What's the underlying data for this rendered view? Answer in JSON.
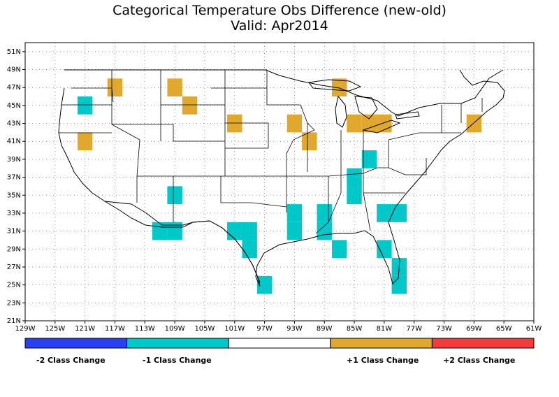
{
  "title_line1": "Categorical Temperature Obs Difference (new-old)",
  "title_line2": "Valid: Apr2014",
  "colors": {
    "minus2": "#2a3ff0",
    "minus1": "#00c8c8",
    "zero": "#ffffff",
    "plus1": "#e0a82e",
    "plus2": "#f23c3c",
    "grid": "#9a9a9a",
    "boundary": "#000000"
  },
  "chart_data": {
    "type": "map",
    "grid_lines": "dotted",
    "x_axis": {
      "range": [
        -129,
        -61
      ],
      "tick_values": [
        -129,
        -125,
        -121,
        -117,
        -113,
        -109,
        -105,
        -101,
        -97,
        -93,
        -89,
        -85,
        -81,
        -77,
        -73,
        -69,
        -65,
        -61
      ],
      "tick_labels": [
        "129W",
        "125W",
        "121W",
        "117W",
        "113W",
        "109W",
        "105W",
        "101W",
        "97W",
        "93W",
        "89W",
        "85W",
        "81W",
        "77W",
        "73W",
        "69W",
        "65W",
        "61W"
      ]
    },
    "y_axis": {
      "range": [
        21,
        52
      ],
      "tick_values": [
        21,
        23,
        25,
        27,
        29,
        31,
        33,
        35,
        37,
        39,
        41,
        43,
        45,
        47,
        49,
        51
      ],
      "tick_labels": [
        "21N",
        "23N",
        "25N",
        "27N",
        "29N",
        "31N",
        "33N",
        "35N",
        "37N",
        "39N",
        "41N",
        "43N",
        "45N",
        "47N",
        "49N",
        "51N"
      ]
    },
    "legend": {
      "position": "bottom",
      "items": [
        {
          "label": "-2 Class Change",
          "value": -2
        },
        {
          "label": "-1 Class Change",
          "value": -1
        },
        {
          "label": "",
          "value": 0
        },
        {
          "label": "+1 Class Change",
          "value": 1
        },
        {
          "label": "+2 Class Change",
          "value": 2
        }
      ]
    },
    "cell_size_deg": 2,
    "cells": [
      {
        "lon": -121,
        "lat": 45,
        "value": -1
      },
      {
        "lon": -121,
        "lat": 41,
        "value": 1
      },
      {
        "lon": -117,
        "lat": 47,
        "value": 1
      },
      {
        "lon": -109,
        "lat": 47,
        "value": 1
      },
      {
        "lon": -107,
        "lat": 45,
        "value": 1
      },
      {
        "lon": -101,
        "lat": 43,
        "value": 1
      },
      {
        "lon": -93,
        "lat": 43,
        "value": 1
      },
      {
        "lon": -91,
        "lat": 41,
        "value": 1
      },
      {
        "lon": -87,
        "lat": 47,
        "value": 1
      },
      {
        "lon": -85,
        "lat": 43,
        "value": 1
      },
      {
        "lon": -83,
        "lat": 43,
        "value": 1
      },
      {
        "lon": -81,
        "lat": 43,
        "value": 1
      },
      {
        "lon": -69,
        "lat": 43,
        "value": 1
      },
      {
        "lon": -83,
        "lat": 39,
        "value": -1
      },
      {
        "lon": -85,
        "lat": 37,
        "value": -1
      },
      {
        "lon": -85,
        "lat": 35,
        "value": -1
      },
      {
        "lon": -109,
        "lat": 35,
        "value": -1
      },
      {
        "lon": -111,
        "lat": 31,
        "value": -1
      },
      {
        "lon": -109,
        "lat": 31,
        "value": -1
      },
      {
        "lon": -101,
        "lat": 31,
        "value": -1
      },
      {
        "lon": -99,
        "lat": 31,
        "value": -1
      },
      {
        "lon": -99,
        "lat": 29,
        "value": -1
      },
      {
        "lon": -97,
        "lat": 25,
        "value": -1
      },
      {
        "lon": -93,
        "lat": 33,
        "value": -1
      },
      {
        "lon": -93,
        "lat": 31,
        "value": -1
      },
      {
        "lon": -89,
        "lat": 33,
        "value": -1
      },
      {
        "lon": -89,
        "lat": 31,
        "value": -1
      },
      {
        "lon": -87,
        "lat": 29,
        "value": -1
      },
      {
        "lon": -81,
        "lat": 33,
        "value": -1
      },
      {
        "lon": -79,
        "lat": 33,
        "value": -1
      },
      {
        "lon": -81,
        "lat": 29,
        "value": -1
      },
      {
        "lon": -79,
        "lat": 27,
        "value": -1
      },
      {
        "lon": -79,
        "lat": 25,
        "value": -1
      }
    ]
  }
}
